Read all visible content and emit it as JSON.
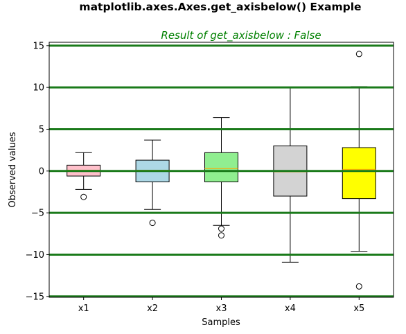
{
  "chart_data": {
    "type": "box",
    "suptitle": "matplotlib.axes.Axes.get_axisbelow() Example",
    "title": "Result of get_axisbelow : False",
    "xlabel": "Samples",
    "ylabel": "Observed values",
    "ylim": [
      -15.1,
      15.4
    ],
    "yticks": [
      -15,
      -10,
      -5,
      0,
      5,
      10,
      15
    ],
    "ytick_labels": [
      "−15",
      "−10",
      "−5",
      "0",
      "5",
      "10",
      "15"
    ],
    "categories": [
      "x1",
      "x2",
      "x3",
      "x4",
      "x5"
    ],
    "grid": {
      "axis": "y",
      "on": true,
      "color": "#1a7a1a",
      "drawn_above_data": true
    },
    "title_color": "#008000",
    "boxes": [
      {
        "category": "x1",
        "whisker_low": -2.2,
        "q1": -0.6,
        "median": 0.1,
        "q3": 0.7,
        "whisker_high": 2.2,
        "fliers": [
          -3.1
        ],
        "color": "#ffc0cb"
      },
      {
        "category": "x2",
        "whisker_low": -4.6,
        "q1": -1.3,
        "median": 0.1,
        "q3": 1.3,
        "whisker_high": 3.7,
        "fliers": [
          -6.2
        ],
        "color": "#add8e6"
      },
      {
        "category": "x3",
        "whisker_low": -6.5,
        "q1": -1.3,
        "median": 0.3,
        "q3": 2.2,
        "whisker_high": 6.4,
        "fliers": [
          -6.9,
          -7.7
        ],
        "color": "#90ee90"
      },
      {
        "category": "x4",
        "whisker_low": -10.9,
        "q1": -3.0,
        "median": -0.1,
        "q3": 3.0,
        "whisker_high": 10.0,
        "fliers": [],
        "color": "#d3d3d3"
      },
      {
        "category": "x5",
        "whisker_low": -9.6,
        "q1": -3.3,
        "median": 0.2,
        "q3": 2.8,
        "whisker_high": 10.1,
        "fliers": [
          14.0,
          -13.8
        ],
        "color": "#ffff00"
      }
    ],
    "median_color": "#ffa500"
  }
}
